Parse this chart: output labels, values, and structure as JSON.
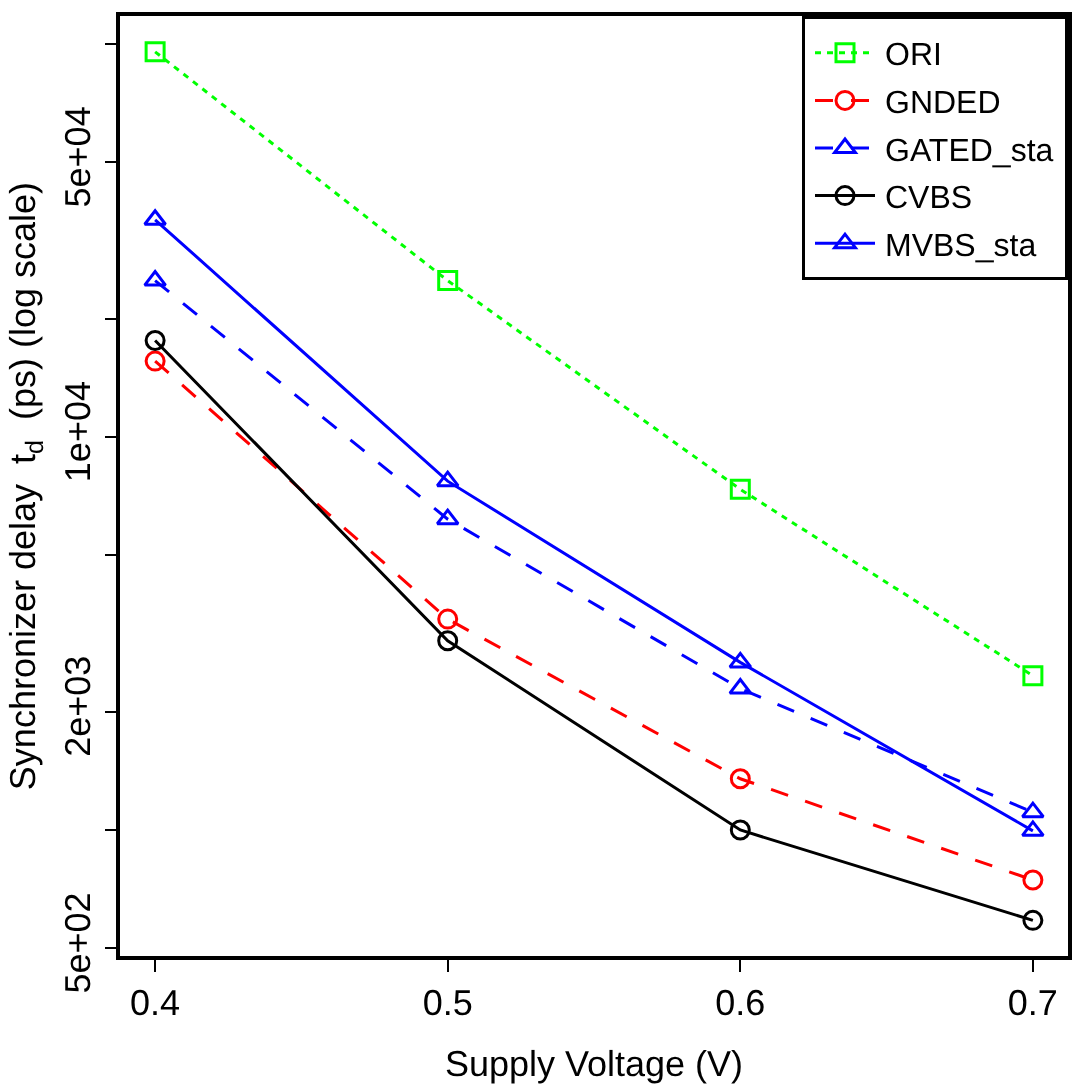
{
  "chart_data": {
    "type": "line",
    "xlabel": "Supply Voltage (V)",
    "ylabel": "Synchronizer delay  t$_{d}$  (ps) (log scale)",
    "x": [
      0.4,
      0.5,
      0.6,
      0.7
    ],
    "series": [
      {
        "name": "ORI",
        "color": "#00ff00",
        "marker": "square",
        "line_style": "dotted",
        "values": [
          95500,
          25000,
          7360,
          2470
        ]
      },
      {
        "name": "GNDED",
        "color": "#ff0000",
        "marker": "circle",
        "line_style": "dashed",
        "values": [
          15600,
          3440,
          1350,
          746
        ]
      },
      {
        "name": "GATED_sta",
        "color": "#0000ff",
        "marker": "triangle",
        "line_style": "dashed",
        "values": [
          25000,
          6180,
          2290,
          1110
        ]
      },
      {
        "name": "CVBS",
        "color": "#000000",
        "marker": "circle",
        "line_style": "solid",
        "values": [
          17600,
          3030,
          1000,
          589
        ]
      },
      {
        "name": "MVBS_sta",
        "color": "#0000ff",
        "marker": "triangle",
        "line_style": "solid",
        "values": [
          35700,
          7720,
          2670,
          995
        ]
      }
    ],
    "log": "y",
    "xlim": [
      0.388,
      0.712
    ],
    "ylim": [
      478,
      117800
    ],
    "xticks": [
      0.4,
      0.5,
      0.6,
      0.7
    ],
    "yticks": [
      {
        "value": 100000,
        "label": null
      },
      {
        "value": 50000,
        "label": "5e+04"
      },
      {
        "value": 20000,
        "label": null
      },
      {
        "value": 10000,
        "label": "1e+04"
      },
      {
        "value": 5000,
        "label": null
      },
      {
        "value": 2000,
        "label": "2e+03"
      },
      {
        "value": 1000,
        "label": null
      },
      {
        "value": 500,
        "label": "5e+02"
      }
    ],
    "legend": "top right"
  }
}
